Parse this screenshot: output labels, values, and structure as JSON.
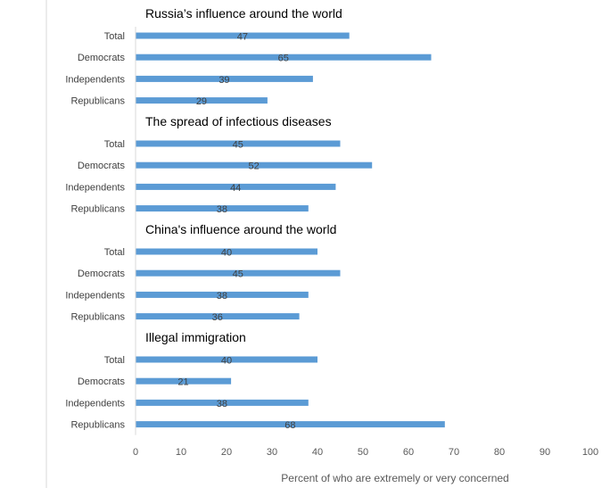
{
  "chart_data": {
    "type": "bar",
    "orientation": "horizontal",
    "xlabel": "Percent of who are extremely or very concerned",
    "xlim": [
      0,
      100
    ],
    "xticks": [
      0,
      10,
      20,
      30,
      40,
      50,
      60,
      70,
      80,
      90,
      100
    ],
    "grid": false,
    "data_labels": true,
    "bar_color": "#5b9bd5",
    "categories": [
      "Total",
      "Democrats",
      "Independents",
      "Republicans"
    ],
    "groups": [
      {
        "title": "Russia’s influence around the world",
        "values": [
          47,
          65,
          39,
          29
        ]
      },
      {
        "title": "The spread of infectious diseases",
        "values": [
          45,
          52,
          44,
          38
        ]
      },
      {
        "title": "China's influence around the world",
        "values": [
          40,
          45,
          38,
          36
        ]
      },
      {
        "title": "Illegal immigration",
        "values": [
          40,
          21,
          38,
          68
        ]
      }
    ]
  }
}
